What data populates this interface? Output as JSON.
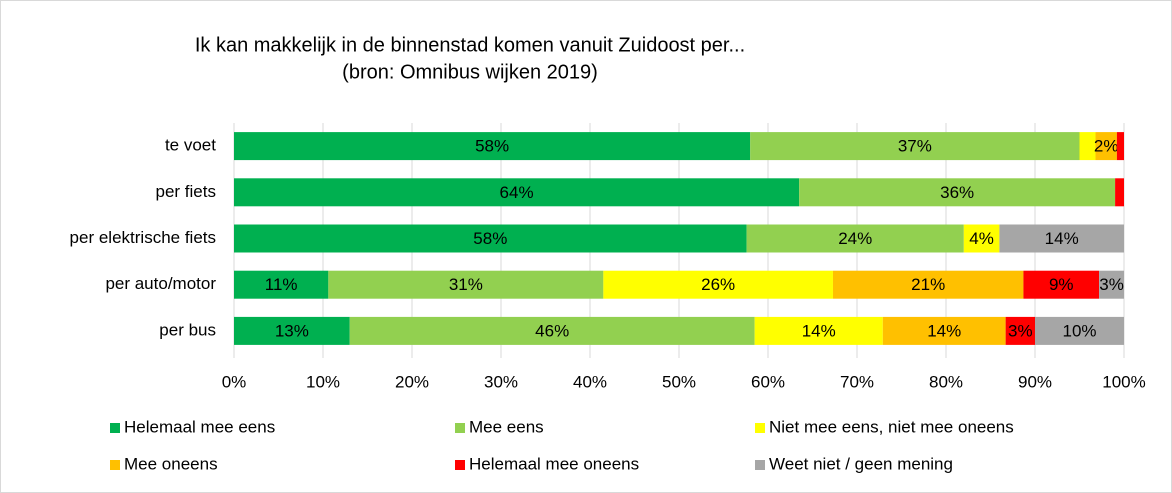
{
  "chart_data": {
    "type": "stacked_bar_horizontal",
    "title": "Ik kan makkelijk in de binnenstad komen vanuit Zuidoost per...",
    "subtitle": "(bron: Omnibus wijken 2019)",
    "categories": [
      "te voet",
      "per fiets",
      "per elektrische fiets",
      "per auto/motor",
      "per bus"
    ],
    "series": [
      {
        "name": "Helemaal mee eens",
        "color": "#00b050",
        "values": [
          58,
          63.5,
          57.6,
          10.6,
          13
        ],
        "value_labels": [
          "58%",
          "64%",
          "58%",
          "11%",
          "13%"
        ]
      },
      {
        "name": "Mee eens",
        "color": "#92d050",
        "values": [
          37,
          35.5,
          24.4,
          30.9,
          45.5
        ],
        "value_labels": [
          "37%",
          "36%",
          "24%",
          "31%",
          "46%"
        ]
      },
      {
        "name": "Niet mee eens, niet mee oneens",
        "color": "#ffff00",
        "values": [
          1.8,
          0,
          4,
          25.8,
          14.4
        ],
        "value_labels": [
          null,
          null,
          "4%",
          "26%",
          "14%"
        ]
      },
      {
        "name": "Mee oneens",
        "color": "#ffc000",
        "values": [
          2.4,
          0,
          0,
          21.4,
          13.8
        ],
        "value_labels": [
          "2%",
          null,
          null,
          "21%",
          "14%"
        ]
      },
      {
        "name": "Helemaal mee oneens",
        "color": "#ff0000",
        "values": [
          0.8,
          1,
          0,
          8.5,
          3.3
        ],
        "value_labels": [
          null,
          null,
          null,
          "9%",
          "3%"
        ]
      },
      {
        "name": "Weet niet / geen mening",
        "color": "#a6a6a6",
        "values": [
          0,
          0,
          14,
          2.8,
          10
        ],
        "value_labels": [
          null,
          null,
          "14%",
          "3%",
          "10%"
        ]
      }
    ],
    "xlim": [
      0,
      100
    ],
    "xticks": [
      {
        "value": 0,
        "label": "0%"
      },
      {
        "value": 10,
        "label": "10%"
      },
      {
        "value": 20,
        "label": "20%"
      },
      {
        "value": 30,
        "label": "30%"
      },
      {
        "value": 40,
        "label": "40%"
      },
      {
        "value": 50,
        "label": "50%"
      },
      {
        "value": 60,
        "label": "60%"
      },
      {
        "value": 70,
        "label": "70%"
      },
      {
        "value": 80,
        "label": "80%"
      },
      {
        "value": 90,
        "label": "90%"
      },
      {
        "value": 100,
        "label": "100%"
      }
    ],
    "grid": true,
    "legend": "bottom"
  }
}
